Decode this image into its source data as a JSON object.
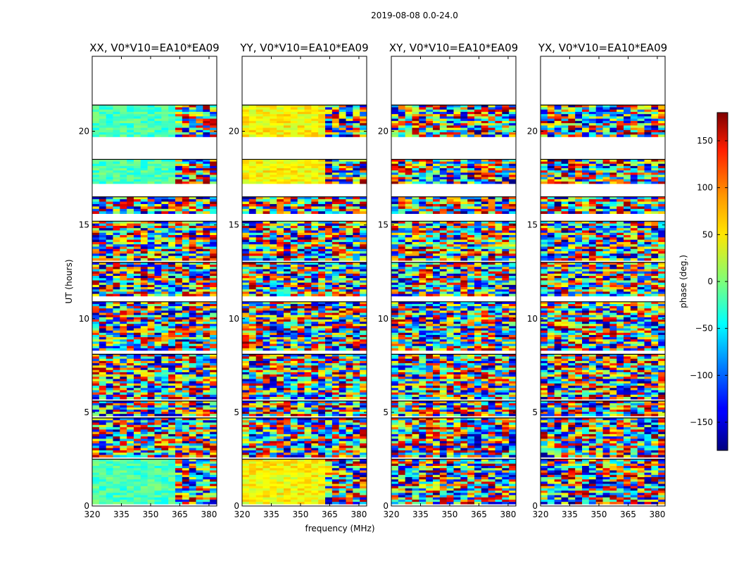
{
  "figure_title": "2019-08-08 0.0-24.0",
  "xlabel": "frequency (MHz)",
  "ylabel": "UT (hours)",
  "colorbar": {
    "label": "phase (deg.)",
    "range": [
      -180,
      180
    ],
    "ticks": [
      -150,
      -100,
      -50,
      0,
      50,
      100,
      150
    ],
    "tick_labels": [
      "−150",
      "−100",
      "−50",
      "0",
      "50",
      "100",
      "150"
    ],
    "colormap": "jet"
  },
  "chart_data": [
    {
      "type": "heatmap",
      "title": "XX, V0*V10=EA10*EA09",
      "x_ticks": [
        320,
        335,
        350,
        365,
        380
      ],
      "y_ticks": [
        0,
        5,
        10,
        15,
        20
      ],
      "xlim": [
        320,
        384
      ],
      "ylim": [
        0,
        24
      ],
      "xlabel": "",
      "ylabel": "UT (hours)",
      "z_unit": "phase (deg.)",
      "grid": false
    },
    {
      "type": "heatmap",
      "title": "YY, V0*V10=EA10*EA09",
      "x_ticks": [
        320,
        335,
        350,
        365,
        380
      ],
      "y_ticks": [
        0,
        5,
        10,
        15,
        20
      ],
      "xlim": [
        320,
        384
      ],
      "ylim": [
        0,
        24
      ],
      "xlabel": "frequency (MHz)",
      "ylabel": "",
      "z_unit": "phase (deg.)",
      "grid": false
    },
    {
      "type": "heatmap",
      "title": "XY, V0*V10=EA10*EA09",
      "x_ticks": [
        320,
        335,
        350,
        365,
        380
      ],
      "y_ticks": [
        0,
        5,
        10,
        15,
        20
      ],
      "xlim": [
        320,
        384
      ],
      "ylim": [
        0,
        24
      ],
      "xlabel": "",
      "ylabel": "",
      "z_unit": "phase (deg.)",
      "grid": false
    },
    {
      "type": "heatmap",
      "title": "YX, V0*V10=EA10*EA09",
      "x_ticks": [
        320,
        335,
        350,
        365,
        380
      ],
      "y_ticks": [
        0,
        5,
        10,
        15,
        20
      ],
      "xlim": [
        320,
        384
      ],
      "ylim": [
        0,
        24
      ],
      "xlabel": "",
      "ylabel": "",
      "z_unit": "phase (deg.)",
      "grid": false
    }
  ]
}
